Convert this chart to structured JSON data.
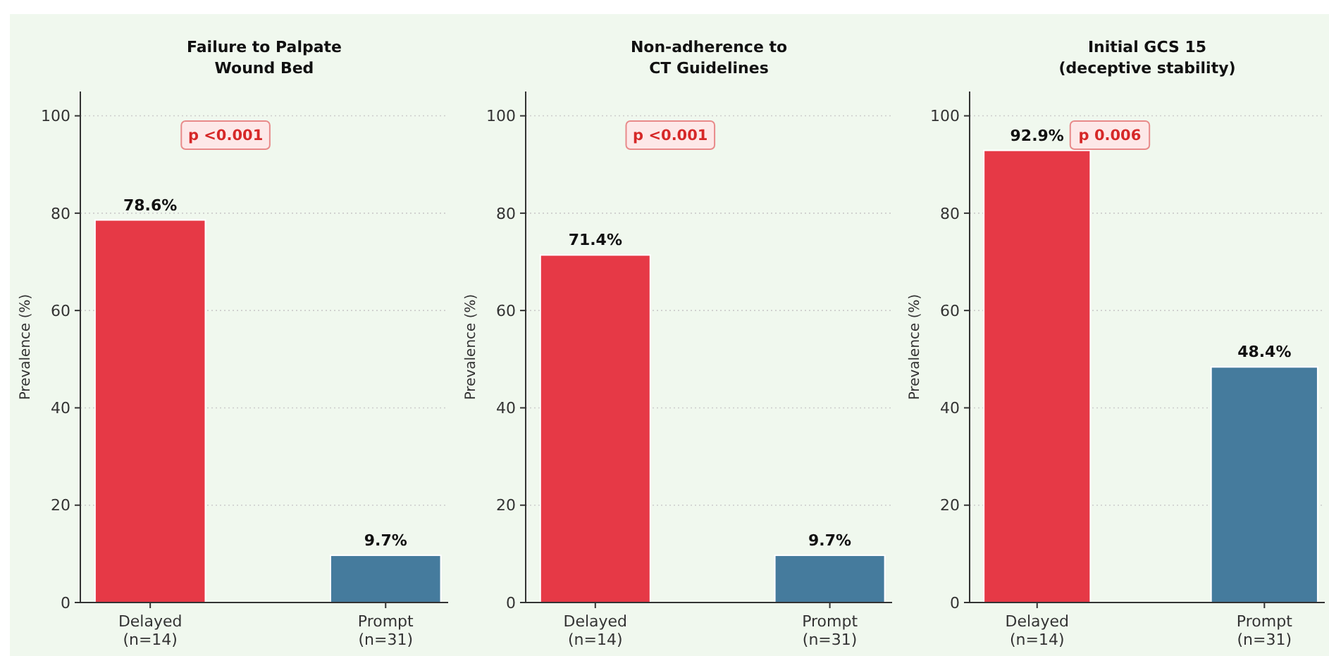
{
  "chart_data": [
    {
      "type": "bar",
      "title": "Failure to Palpate\nWound Bed",
      "ylabel": "Prevalence (%)",
      "categories": [
        "Delayed\n(n=14)",
        "Prompt\n(n=31)"
      ],
      "values": [
        78.6,
        9.7
      ],
      "colors": [
        "#e63946",
        "#457b9d"
      ],
      "value_labels": [
        "78.6%",
        "9.7%"
      ],
      "ylim": [
        0,
        105
      ],
      "yticks": [
        0,
        20,
        40,
        60,
        80,
        100
      ],
      "grid": "y",
      "annotations": [
        "p <0.001"
      ]
    },
    {
      "type": "bar",
      "title": "Non-adherence to\nCT Guidelines",
      "ylabel": "Prevalence (%)",
      "categories": [
        "Delayed\n(n=14)",
        "Prompt\n(n=31)"
      ],
      "values": [
        71.4,
        9.7
      ],
      "colors": [
        "#e63946",
        "#457b9d"
      ],
      "value_labels": [
        "71.4%",
        "9.7%"
      ],
      "ylim": [
        0,
        105
      ],
      "yticks": [
        0,
        20,
        40,
        60,
        80,
        100
      ],
      "grid": "y",
      "annotations": [
        "p <0.001"
      ]
    },
    {
      "type": "bar",
      "title": "Initial GCS 15\n(deceptive stability)",
      "ylabel": "Prevalence (%)",
      "categories": [
        "Delayed\n(n=14)",
        "Prompt\n(n=31)"
      ],
      "values": [
        92.9,
        48.4
      ],
      "colors": [
        "#e63946",
        "#457b9d"
      ],
      "value_labels": [
        "92.9%",
        "48.4%"
      ],
      "ylim": [
        0,
        105
      ],
      "yticks": [
        0,
        20,
        40,
        60,
        80,
        100
      ],
      "grid": "y",
      "annotations": [
        "p 0.006"
      ]
    }
  ]
}
